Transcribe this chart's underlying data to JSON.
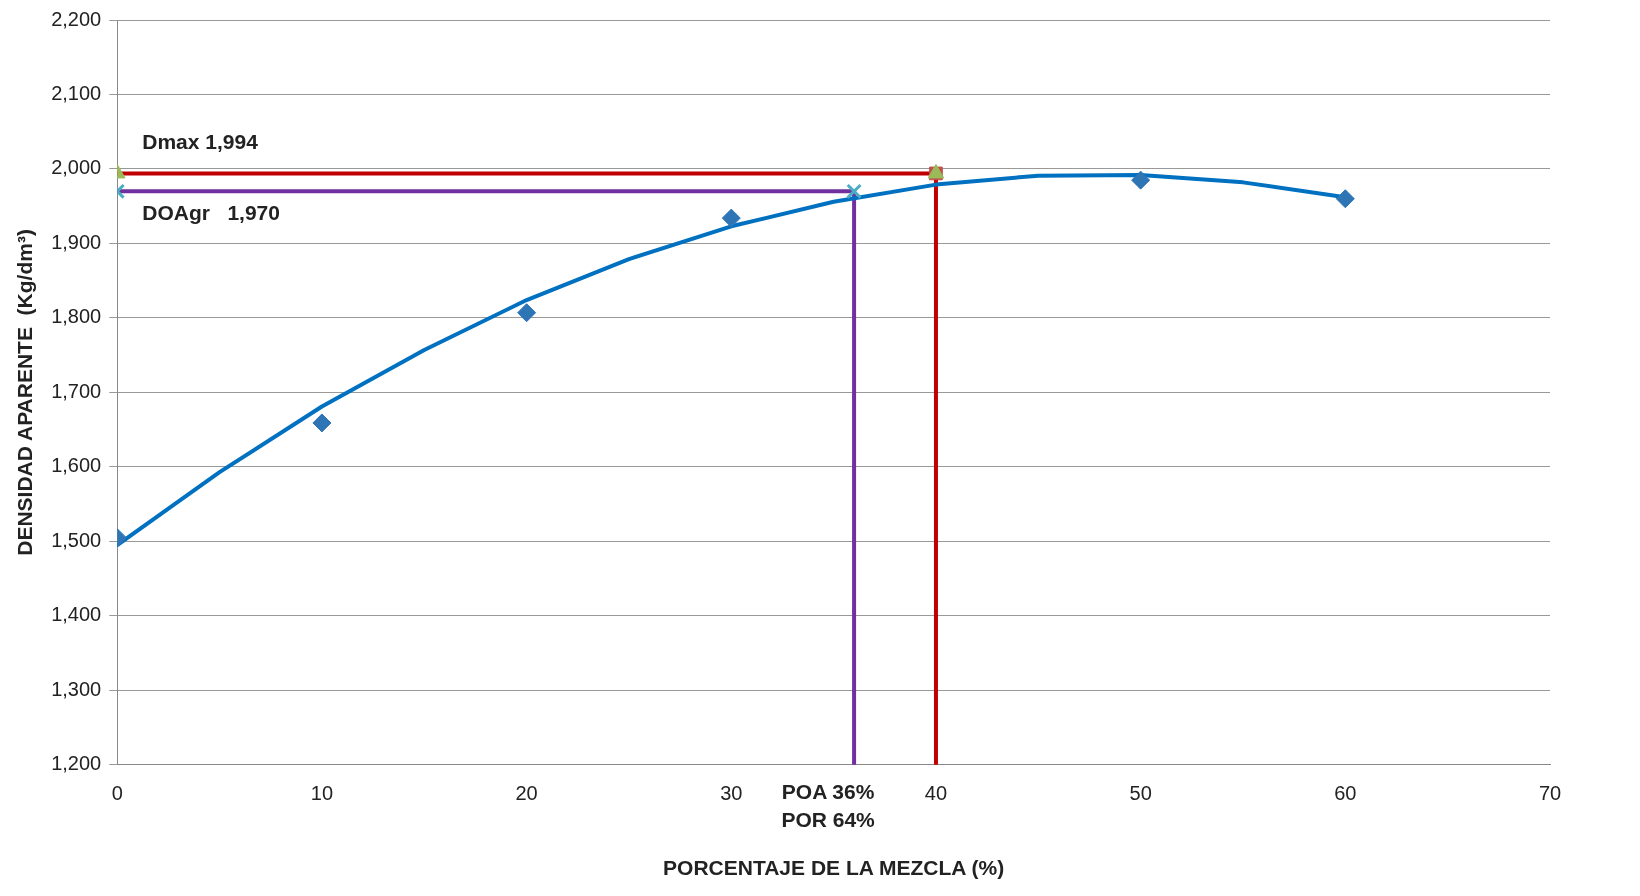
{
  "chart_data": {
    "type": "scatter",
    "xlabel": "PORCENTAJE DE LA MEZCLA (%)",
    "ylabel": "DENSIDAD APARENTE  (Kg/dm³)",
    "xlim": [
      0,
      70
    ],
    "xticks": [
      0,
      10,
      20,
      30,
      40,
      50,
      60,
      70
    ],
    "ylim": [
      1200,
      2200
    ],
    "yticks": [
      {
        "value": 1200,
        "label": "1,200"
      },
      {
        "value": 1300,
        "label": "1,300"
      },
      {
        "value": 1400,
        "label": "1,400"
      },
      {
        "value": 1500,
        "label": "1,500"
      },
      {
        "value": 1600,
        "label": "1,600"
      },
      {
        "value": 1700,
        "label": "1,700"
      },
      {
        "value": 1800,
        "label": "1,800"
      },
      {
        "value": 1900,
        "label": "1,900"
      },
      {
        "value": 2000,
        "label": "2,000"
      },
      {
        "value": 2100,
        "label": "2,100"
      },
      {
        "value": 2200,
        "label": "2,200"
      }
    ],
    "grid": "y",
    "legend": false,
    "series": [
      {
        "type": "line",
        "color": "#c00000",
        "marker": "none",
        "x": [
          0,
          40,
          40
        ],
        "values": [
          1994,
          1994,
          1200
        ]
      },
      {
        "type": "line",
        "color": "#7030a0",
        "marker": "none",
        "x": [
          0,
          36,
          36
        ],
        "values": [
          1970,
          1970,
          1200
        ]
      },
      {
        "type": "line",
        "color": "#0070c0",
        "marker": "none",
        "x": [
          0,
          5,
          10,
          15,
          20,
          25,
          30,
          35,
          40,
          45,
          50,
          55,
          60
        ],
        "values": [
          1495,
          1593,
          1681,
          1757,
          1824,
          1879,
          1923,
          1956,
          1979,
          1991,
          1992,
          1982,
          1962
        ]
      },
      {
        "type": "scatter",
        "color": "#2e75b6",
        "marker": "diamond",
        "x": [
          0,
          10,
          20,
          30,
          50,
          60
        ],
        "values": [
          1505,
          1659,
          1807,
          1934,
          1985,
          1960
        ]
      },
      {
        "type": "scatter",
        "color": "#c0504d",
        "marker": "square",
        "x": [
          40
        ],
        "values": [
          1994
        ]
      },
      {
        "type": "scatter",
        "color": "#9bbb59",
        "marker": "triangle",
        "x": [
          0,
          40
        ],
        "values": [
          1994,
          1994
        ]
      },
      {
        "type": "scatter",
        "color": "#4bacc6",
        "marker": "cross",
        "x": [
          0,
          36
        ],
        "values": [
          1970,
          1970
        ]
      }
    ],
    "annotations": [
      "Dmax 1,994",
      "DOAgr   1,970",
      "POA 36%\nPOR 64%"
    ]
  }
}
